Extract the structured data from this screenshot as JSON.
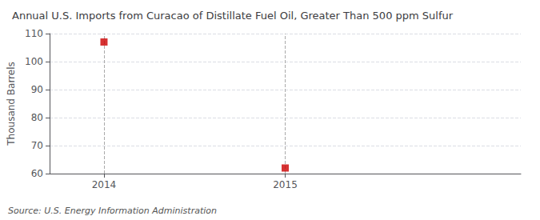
{
  "chart_data": {
    "type": "scatter",
    "title": "Annual U.S. Imports from Curacao of Distillate Fuel Oil, Greater Than 500 ppm Sulfur",
    "ylabel": "Thousand Barrels",
    "annotations": [
      "Source: U.S. Energy Information Administration"
    ],
    "x": [
      2014,
      2015
    ],
    "values": [
      107,
      62
    ],
    "color": "#cc0000",
    "marker": "square",
    "xlim": [
      2013.7,
      2016.3
    ],
    "xticks": [
      2014,
      2015
    ],
    "ylim": [
      60,
      110
    ],
    "yticks": [
      60,
      70,
      80,
      90,
      100,
      110
    ],
    "grid": true
  }
}
